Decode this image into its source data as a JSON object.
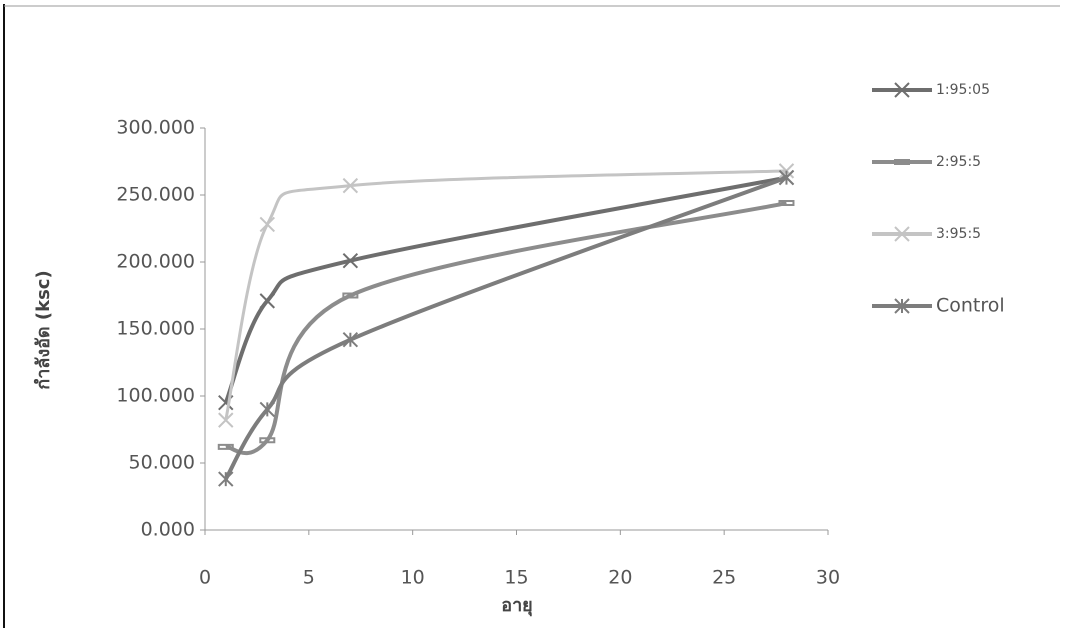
{
  "chart_data": {
    "type": "scatter",
    "y_label": "กำลังอัด (ksc)",
    "x_label": "อายุ",
    "xlim": [
      0,
      30
    ],
    "xticks": [
      0,
      5,
      10,
      15,
      20,
      25,
      30
    ],
    "ylim": [
      0,
      300
    ],
    "yticks": [
      {
        "value": 0,
        "label": "0.000"
      },
      {
        "value": 50,
        "label": "50.000"
      },
      {
        "value": 100,
        "label": "100.000"
      },
      {
        "value": 150,
        "label": "150.000"
      },
      {
        "value": 200,
        "label": "200.000"
      },
      {
        "value": 250,
        "label": "250.000"
      },
      {
        "value": 300,
        "label": "300.000"
      }
    ],
    "legend": "right",
    "series": [
      {
        "name": "1:95:05",
        "color": "#6e6e6e",
        "x": [
          1,
          3,
          7,
          28
        ],
        "values": [
          95,
          171,
          201,
          263
        ]
      },
      {
        "name": "2:95:5",
        "color": "#8c8c8c",
        "x": [
          1,
          3,
          7,
          28
        ],
        "values": [
          62,
          67,
          175,
          244
        ]
      },
      {
        "name": "3:95:5",
        "color": "#c4c4c4",
        "x": [
          1,
          3,
          7,
          28
        ],
        "values": [
          82,
          228,
          257,
          268
        ]
      },
      {
        "name": "Control",
        "color": "#7d7d7d",
        "x": [
          1,
          3,
          7,
          28
        ],
        "values": [
          38,
          90,
          142,
          263
        ]
      }
    ]
  }
}
